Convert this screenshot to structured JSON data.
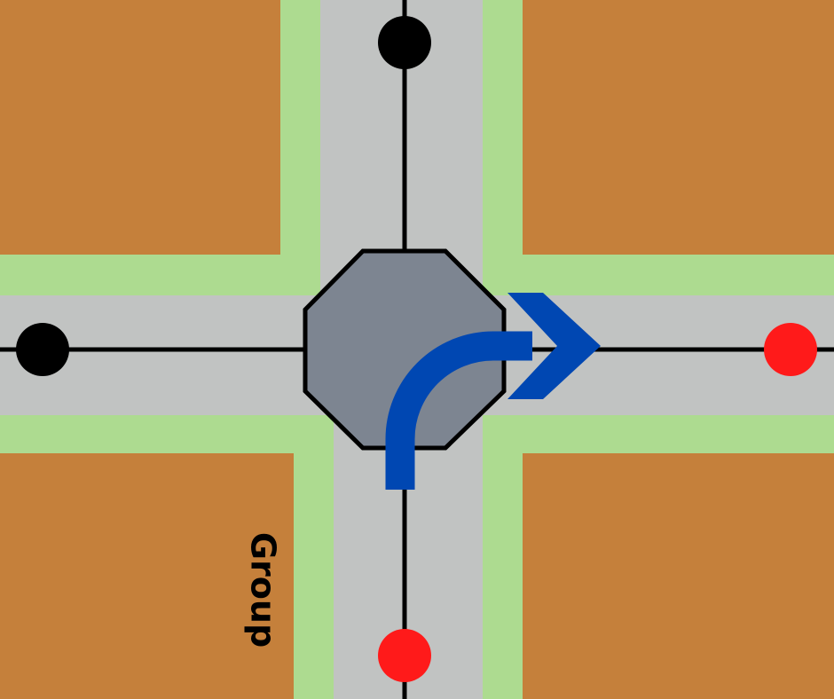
{
  "labels": {
    "block_bottom_left": "Group"
  },
  "colors": {
    "block": "#c5803b",
    "verge": "#addb90",
    "road": "#c1c3c2",
    "road_line": "#000000",
    "intersection": "#7d8591",
    "turn_arrow": "#0047b2",
    "endpoint_inactive": "#000000",
    "endpoint_active": "#ff1a1a"
  },
  "icons": {
    "intersection": "octagon-node-icon",
    "turn_arrow": "right-turn-arrow-icon"
  },
  "endpoints": [
    {
      "name": "north",
      "state": "inactive"
    },
    {
      "name": "west",
      "state": "inactive"
    },
    {
      "name": "east",
      "state": "active"
    },
    {
      "name": "south",
      "state": "active"
    }
  ]
}
